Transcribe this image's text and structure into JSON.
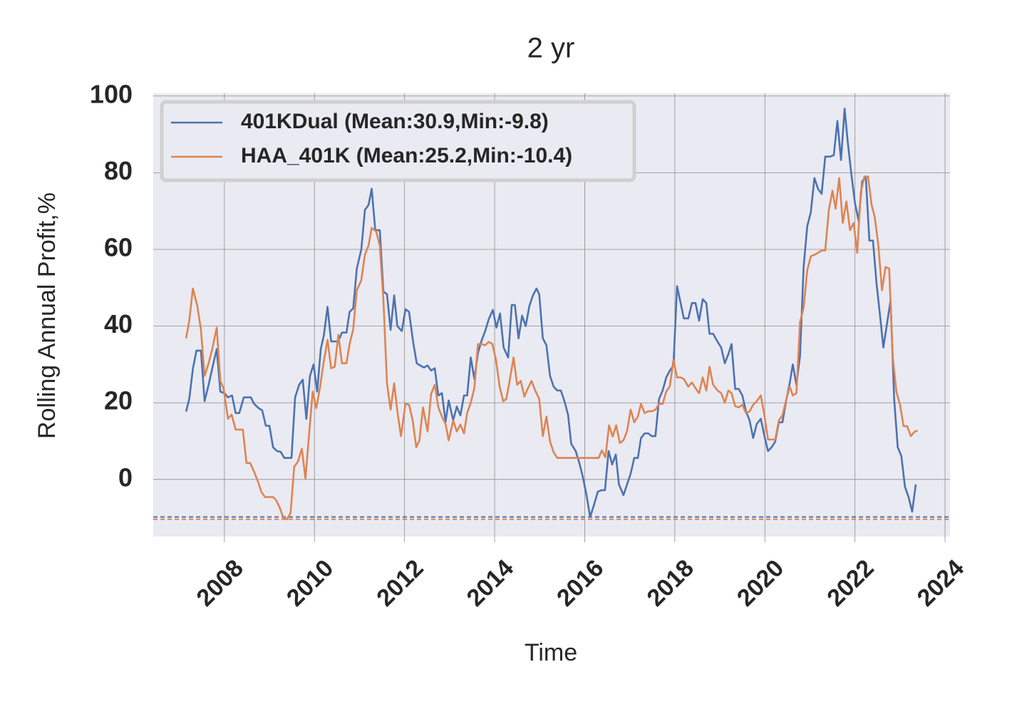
{
  "chart_data": {
    "type": "line",
    "title": "2 yr",
    "x_label": "Time",
    "y_label": "Rolling Annual Profit,%",
    "xlim": [
      2006.42,
      2024.11
    ],
    "xticks": [
      2008,
      2010,
      2012,
      2014,
      2016,
      2018,
      2020,
      2022,
      2024
    ],
    "ylim": [
      -14.9,
      100.7
    ],
    "yticks": [
      0,
      20,
      40,
      60,
      80,
      100
    ],
    "grid": true,
    "legend": "upper left",
    "reference_lines": [
      {
        "value": -9.8,
        "color": "#4c72b0"
      },
      {
        "value": -10.4,
        "color": "#dd8452"
      }
    ],
    "series": [
      {
        "name": "401KDual (Mean:30.9,Min:-9.8)",
        "color": "#4c72b0",
        "x": [
          2007.15,
          2007.22,
          2007.3,
          2007.38,
          2007.48,
          2007.56,
          2007.65,
          2007.75,
          2007.83,
          2007.91,
          2008.0,
          2008.08,
          2008.17,
          2008.25,
          2008.33,
          2008.43,
          2008.59,
          2008.66,
          2008.76,
          2008.84,
          2008.92,
          2009.0,
          2009.08,
          2009.17,
          2009.25,
          2009.33,
          2009.49,
          2009.57,
          2009.66,
          2009.74,
          2009.82,
          2009.9,
          2009.98,
          2010.06,
          2010.14,
          2010.21,
          2010.29,
          2010.37,
          2010.53,
          2010.61,
          2010.71,
          2010.78,
          2010.86,
          2010.94,
          2011.04,
          2011.12,
          2011.2,
          2011.27,
          2011.35,
          2011.45,
          2011.53,
          2011.61,
          2011.69,
          2011.77,
          2011.84,
          2011.94,
          2012.02,
          2012.1,
          2012.19,
          2012.27,
          2012.35,
          2012.43,
          2012.51,
          2012.59,
          2012.67,
          2012.75,
          2012.83,
          2012.91,
          2012.98,
          2013.08,
          2013.16,
          2013.24,
          2013.32,
          2013.39,
          2013.47,
          2013.55,
          2013.63,
          2013.71,
          2013.79,
          2013.87,
          2013.96,
          2014.04,
          2014.12,
          2014.2,
          2014.3,
          2014.38,
          2014.45,
          2014.53,
          2014.61,
          2014.69,
          2014.77,
          2014.85,
          2014.93,
          2014.99,
          2015.07,
          2015.15,
          2015.23,
          2015.31,
          2015.39,
          2015.47,
          2015.55,
          2015.63,
          2015.7,
          2015.8,
          2015.88,
          2015.96,
          2016.04,
          2016.12,
          2016.21,
          2016.29,
          2016.37,
          2016.45,
          2016.53,
          2016.61,
          2016.69,
          2016.76,
          2016.86,
          2016.94,
          2017.02,
          2017.1,
          2017.18,
          2017.25,
          2017.33,
          2017.41,
          2017.49,
          2017.57,
          2017.65,
          2017.73,
          2017.81,
          2017.89,
          2017.97,
          2018.05,
          2018.13,
          2018.2,
          2018.3,
          2018.38,
          2018.46,
          2018.54,
          2018.62,
          2018.7,
          2018.77,
          2018.85,
          2018.95,
          2019.03,
          2019.11,
          2019.19,
          2019.26,
          2019.34,
          2019.42,
          2019.5,
          2019.58,
          2019.66,
          2019.74,
          2019.82,
          2019.91,
          2019.99,
          2020.07,
          2020.15,
          2020.23,
          2020.31,
          2020.39,
          2020.47,
          2020.55,
          2020.62,
          2020.7,
          2020.78,
          2020.86,
          2020.94,
          2021.02,
          2021.1,
          2021.18,
          2021.26,
          2021.34,
          2021.45,
          2021.53,
          2021.61,
          2021.69,
          2021.77,
          2021.84,
          2021.92,
          2022.0,
          2022.08,
          2022.16,
          2022.24,
          2022.32,
          2022.4,
          2022.48,
          2022.56,
          2022.63,
          2022.71,
          2022.79,
          2022.87,
          2022.95,
          2023.03,
          2023.11,
          2023.19,
          2023.27,
          2023.35
        ],
        "values": [
          17.7,
          21,
          28.8,
          33.6,
          33.6,
          20.4,
          24.7,
          30,
          34,
          22.9,
          22.5,
          21.4,
          21.9,
          17.3,
          17.3,
          21.4,
          21.4,
          19.7,
          18.6,
          18,
          14,
          14,
          8.4,
          7.4,
          7.2,
          5.6,
          5.6,
          21.4,
          24.7,
          26,
          15.8,
          27,
          30,
          22.9,
          34,
          37.7,
          45,
          36,
          36,
          38.3,
          38.3,
          43.7,
          44.6,
          55,
          60,
          70.3,
          71.6,
          75.8,
          65,
          65,
          49,
          48.3,
          39,
          48,
          40,
          38.7,
          44.4,
          43.7,
          35.9,
          30.3,
          29.7,
          29.2,
          29.7,
          28.4,
          29,
          21.9,
          22.5,
          15,
          20.6,
          15.4,
          19,
          16.7,
          21.9,
          21.9,
          31.8,
          26.2,
          33,
          36.2,
          38.7,
          41.8,
          44.2,
          39.6,
          43.3,
          34.4,
          31.8,
          45.5,
          45.5,
          36.8,
          42.7,
          40,
          45.2,
          48,
          49.8,
          48.3,
          36.8,
          35,
          27,
          24.2,
          23.2,
          23.2,
          20.4,
          16.9,
          9.3,
          7.4,
          4.3,
          0.6,
          -4.1,
          -9.8,
          -6.5,
          -3.2,
          -2.8,
          -2.8,
          7.4,
          3.9,
          6.5,
          -1.3,
          -4.1,
          -1.3,
          1.5,
          5.6,
          5.6,
          10.8,
          12,
          12,
          11.3,
          11.3,
          21,
          23.2,
          26.6,
          28.4,
          29.7,
          50.4,
          46,
          42,
          42,
          46,
          46,
          41.4,
          47,
          46,
          38,
          38,
          35.9,
          34.4,
          30.3,
          32.7,
          35.3,
          23.6,
          23.6,
          21.9,
          17.8,
          15.4,
          10.8,
          14.5,
          15.8,
          11.3,
          7.4,
          8.4,
          9.9,
          14.9,
          14.9,
          20.4,
          25,
          30,
          24.7,
          32.2,
          55.4,
          66,
          69.7,
          78.6,
          75.8,
          74.5,
          84.2,
          84.2,
          84.6,
          93.5,
          83.3,
          96.7,
          88,
          79.6,
          72.1,
          67.5,
          77.7,
          79,
          62.3,
          62.3,
          51,
          42.4,
          34.4,
          40.5,
          46.7,
          21,
          8.4,
          6.1,
          -1.9,
          -4.6,
          -8.4,
          -1.3
        ]
      },
      {
        "name": "HAA_401K (Mean:25.2,Min:-10.4)",
        "color": "#dd8452",
        "x": [
          2007.15,
          2007.22,
          2007.3,
          2007.4,
          2007.48,
          2007.56,
          2007.65,
          2007.73,
          2007.83,
          2007.91,
          2007.98,
          2008.08,
          2008.16,
          2008.25,
          2008.41,
          2008.49,
          2008.57,
          2008.66,
          2008.74,
          2008.82,
          2008.9,
          2009.08,
          2009.15,
          2009.23,
          2009.31,
          2009.39,
          2009.47,
          2009.55,
          2009.63,
          2009.72,
          2009.8,
          2009.88,
          2009.96,
          2010.04,
          2010.12,
          2010.2,
          2010.29,
          2010.37,
          2010.45,
          2010.53,
          2010.61,
          2010.71,
          2010.78,
          2010.86,
          2010.94,
          2011.04,
          2011.12,
          2011.2,
          2011.27,
          2011.37,
          2011.45,
          2011.53,
          2011.61,
          2011.69,
          2011.77,
          2011.84,
          2011.92,
          2012.02,
          2012.1,
          2012.18,
          2012.26,
          2012.33,
          2012.41,
          2012.51,
          2012.59,
          2012.67,
          2012.75,
          2012.83,
          2012.91,
          2012.98,
          2013.08,
          2013.16,
          2013.24,
          2013.32,
          2013.39,
          2013.47,
          2013.55,
          2013.63,
          2013.71,
          2013.79,
          2013.87,
          2013.95,
          2014.03,
          2014.11,
          2014.19,
          2014.26,
          2014.34,
          2014.42,
          2014.5,
          2014.58,
          2014.66,
          2014.74,
          2014.82,
          2014.9,
          2014.99,
          2015.07,
          2015.15,
          2015.23,
          2015.31,
          2015.39,
          2015.55,
          2016.15,
          2016.31,
          2016.38,
          2016.46,
          2016.54,
          2016.62,
          2016.7,
          2016.78,
          2016.86,
          2016.94,
          2017.02,
          2017.1,
          2017.18,
          2017.25,
          2017.33,
          2017.41,
          2017.49,
          2017.57,
          2017.65,
          2017.73,
          2017.81,
          2017.89,
          2017.97,
          2018.05,
          2018.13,
          2018.2,
          2018.3,
          2018.38,
          2018.46,
          2018.54,
          2018.62,
          2018.7,
          2018.77,
          2018.85,
          2018.95,
          2019.03,
          2019.11,
          2019.19,
          2019.26,
          2019.34,
          2019.42,
          2019.5,
          2019.58,
          2019.66,
          2019.74,
          2019.82,
          2019.91,
          2019.99,
          2020.07,
          2020.23,
          2020.31,
          2020.39,
          2020.47,
          2020.55,
          2020.62,
          2020.7,
          2020.78,
          2020.86,
          2020.94,
          2021.02,
          2021.1,
          2021.18,
          2021.26,
          2021.34,
          2021.42,
          2021.5,
          2021.57,
          2021.65,
          2021.73,
          2021.81,
          2021.89,
          2021.97,
          2022.05,
          2022.13,
          2022.21,
          2022.29,
          2022.37,
          2022.44,
          2022.52,
          2022.6,
          2022.68,
          2022.76,
          2022.84,
          2022.92,
          2023.0,
          2023.08,
          2023.16,
          2023.24,
          2023.31,
          2023.39
        ],
        "values": [
          36.8,
          41.4,
          49.8,
          45.2,
          39,
          27,
          30.3,
          34,
          39.6,
          25.7,
          23.8,
          15.8,
          16.9,
          13,
          13,
          4.3,
          4.3,
          2,
          -0.4,
          -3.2,
          -4.6,
          -4.6,
          -5.4,
          -7.4,
          -10,
          -10.4,
          -8.7,
          3.3,
          4.6,
          8,
          0.2,
          11.7,
          22.9,
          18.6,
          23.8,
          30.3,
          36.4,
          29,
          29.4,
          37.7,
          30.3,
          30.3,
          35.3,
          39.2,
          49.3,
          52,
          58.6,
          61,
          65.6,
          64.7,
          61,
          47,
          25.1,
          18.2,
          25.1,
          17.8,
          11.3,
          19.7,
          19.5,
          15.4,
          8.4,
          10.2,
          18.8,
          12.5,
          22.3,
          24.7,
          18.8,
          16.4,
          14.5,
          10.2,
          15.4,
          12.5,
          14.3,
          12,
          17.3,
          20,
          23.8,
          35.3,
          35.3,
          35,
          35.9,
          35.3,
          31.2,
          24.3,
          20.4,
          21,
          26.2,
          31.8,
          24.7,
          25.7,
          21.6,
          23.8,
          25.7,
          23.2,
          21,
          11.3,
          16.4,
          9.9,
          7.1,
          5.6,
          5.6,
          5.6,
          5.6,
          7.6,
          5.8,
          14.1,
          11.2,
          14.1,
          9.5,
          10.2,
          12.6,
          18.2,
          14.9,
          16.4,
          19.7,
          17.3,
          17.8,
          17.8,
          18.2,
          19.7,
          19.7,
          22.9,
          24.3,
          31.2,
          26.6,
          26.6,
          26.2,
          24.2,
          25.3,
          23.8,
          22.5,
          26.6,
          23.2,
          29.4,
          24.7,
          23.2,
          22.5,
          20,
          23.2,
          22.5,
          19.1,
          18.8,
          19.5,
          17.3,
          17.7,
          19.5,
          20.4,
          21.9,
          16.7,
          10.4,
          10.4,
          15.4,
          16.7,
          20.6,
          24.2,
          21.9,
          22.5,
          41,
          44.8,
          54.5,
          58.2,
          58.6,
          59.1,
          59.7,
          59.7,
          70.3,
          75.3,
          70.6,
          78.6,
          66.9,
          72.5,
          65,
          66.9,
          59.1,
          74.9,
          79,
          79,
          71.6,
          68.4,
          61,
          49.3,
          55.4,
          55,
          31.8,
          22.9,
          19.5,
          13.9,
          13.9,
          11.3,
          12.3,
          12.8
        ]
      }
    ]
  }
}
